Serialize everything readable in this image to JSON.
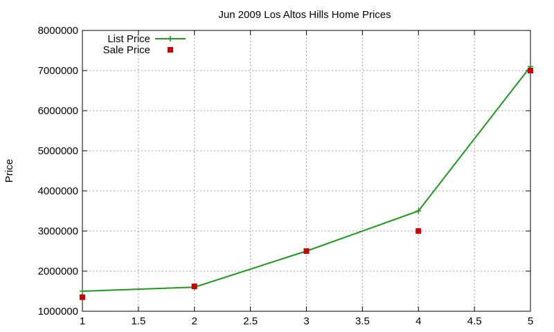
{
  "chart_data": {
    "type": "line",
    "title": "Jun 2009 Los Altos Hills Home Prices",
    "xlabel": "",
    "ylabel": "Price",
    "xlim": [
      1,
      5
    ],
    "ylim": [
      1000000,
      8000000
    ],
    "x_ticks": [
      "1",
      "1.5",
      "2",
      "2.5",
      "3",
      "3.5",
      "4",
      "4.5",
      "5"
    ],
    "y_ticks": [
      "1000000",
      "2000000",
      "3000000",
      "4000000",
      "5000000",
      "6000000",
      "7000000",
      "8000000"
    ],
    "grid": true,
    "legend_position": "top-left",
    "series": [
      {
        "name": "List Price",
        "style": "line-with-plus-markers",
        "color": "#1a9a1a",
        "x": [
          1,
          2,
          3,
          4,
          5
        ],
        "y": [
          1500000,
          1600000,
          2500000,
          3500000,
          7100000
        ]
      },
      {
        "name": "Sale Price",
        "style": "square-markers",
        "color": "#cc0000",
        "x": [
          1,
          2,
          3,
          4,
          5
        ],
        "y": [
          1350000,
          1620000,
          2500000,
          3000000,
          7000000
        ]
      }
    ]
  }
}
